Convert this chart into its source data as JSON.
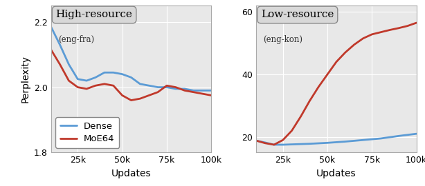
{
  "high_resource": {
    "title": "High-resource",
    "subtitle": "(eng-fra)",
    "xlabel": "Updates",
    "ylabel": "Perplexity",
    "xlim": [
      10000,
      100000
    ],
    "ylim": [
      1.8,
      2.25
    ],
    "yticks": [
      1.8,
      2.0,
      2.2
    ],
    "xticks": [
      25000,
      50000,
      75000,
      100000
    ],
    "xtick_labels": [
      "25k",
      "50k",
      "75k",
      "100k"
    ],
    "dense_x": [
      10000,
      15000,
      20000,
      25000,
      30000,
      35000,
      40000,
      45000,
      50000,
      55000,
      60000,
      65000,
      70000,
      75000,
      80000,
      85000,
      90000,
      95000,
      100000
    ],
    "dense_y": [
      2.185,
      2.13,
      2.07,
      2.025,
      2.02,
      2.03,
      2.045,
      2.045,
      2.04,
      2.03,
      2.01,
      2.005,
      2.0,
      2.0,
      1.995,
      1.995,
      1.99,
      1.99,
      1.99
    ],
    "moe_x": [
      10000,
      15000,
      20000,
      25000,
      30000,
      35000,
      40000,
      45000,
      50000,
      55000,
      60000,
      65000,
      70000,
      75000,
      80000,
      85000,
      90000,
      95000,
      100000
    ],
    "moe_y": [
      2.115,
      2.07,
      2.02,
      2.0,
      1.995,
      2.005,
      2.01,
      2.005,
      1.975,
      1.96,
      1.965,
      1.975,
      1.985,
      2.005,
      2.0,
      1.99,
      1.985,
      1.98,
      1.975
    ],
    "dense_color": "#5b9bd5",
    "moe_color": "#c0392b",
    "legend_labels": [
      "Dense",
      "MoE64"
    ]
  },
  "low_resource": {
    "title": "Low-resource",
    "subtitle": "(eng-kon)",
    "xlabel": "Updates",
    "xlim": [
      10000,
      100000
    ],
    "ylim": [
      15,
      62
    ],
    "yticks": [
      20,
      40,
      60
    ],
    "xticks": [
      25000,
      50000,
      75000,
      100000
    ],
    "xtick_labels": [
      "25k",
      "50k",
      "75k",
      "100k"
    ],
    "dense_x": [
      10000,
      15000,
      20000,
      25000,
      30000,
      35000,
      40000,
      50000,
      60000,
      70000,
      80000,
      90000,
      100000
    ],
    "dense_y": [
      18.8,
      18.2,
      17.5,
      17.5,
      17.6,
      17.7,
      17.8,
      18.1,
      18.5,
      19.0,
      19.5,
      20.3,
      21.0
    ],
    "moe_x": [
      10000,
      15000,
      20000,
      25000,
      30000,
      35000,
      40000,
      45000,
      50000,
      55000,
      60000,
      65000,
      70000,
      75000,
      80000,
      85000,
      90000,
      95000,
      100000
    ],
    "moe_y": [
      18.8,
      18.0,
      17.5,
      19.0,
      22.0,
      26.5,
      31.5,
      36.0,
      40.0,
      44.0,
      47.0,
      49.5,
      51.5,
      52.8,
      53.5,
      54.2,
      54.8,
      55.5,
      56.5
    ],
    "dense_color": "#5b9bd5",
    "moe_color": "#c0392b"
  },
  "background_color": "#e8e8e8",
  "grid_color": "#ffffff",
  "linewidth": 2.0
}
